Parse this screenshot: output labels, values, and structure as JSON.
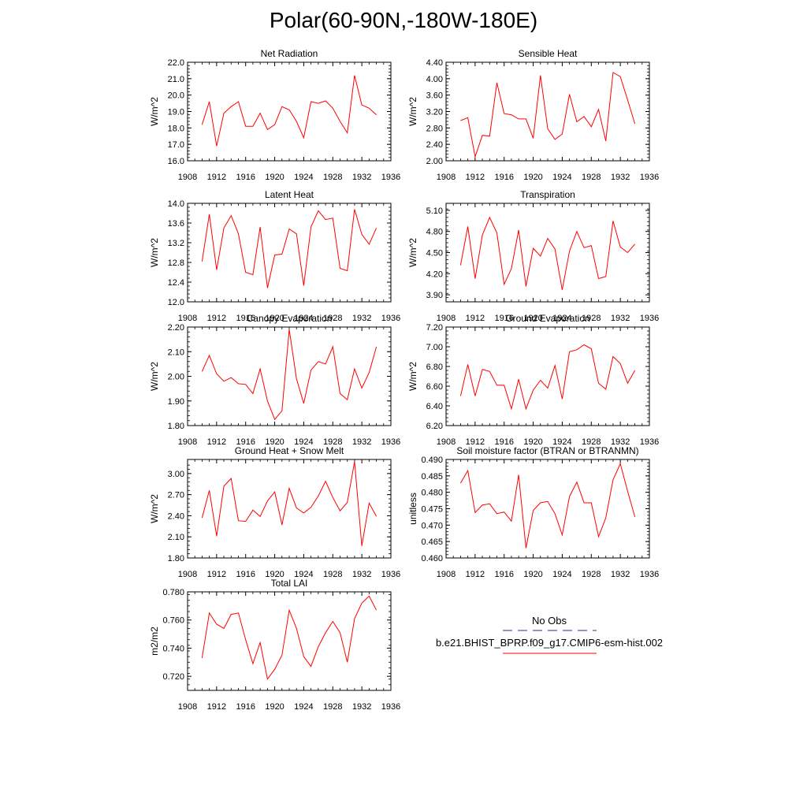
{
  "page_title": "Polar(60-90N,-180W-180E)",
  "line_color": "#ff0000",
  "legend": {
    "obs_label": "No Obs",
    "model_label": "b.e21.BHIST_BPRP.f09_g17.CMIP6-esm-hist.002",
    "obs_color": "#2b2b8c",
    "model_color": "#ff0000"
  },
  "chart_data": [
    {
      "type": "line",
      "title": "Net Radiation",
      "ylabel": "W/m^2",
      "xlim": [
        1908,
        1936
      ],
      "xticks": [
        1908,
        1912,
        1916,
        1920,
        1924,
        1928,
        1932,
        1936
      ],
      "ylim": [
        16.0,
        22.0
      ],
      "yticks": [
        "16.0",
        "17.0",
        "18.0",
        "19.0",
        "20.0",
        "21.0",
        "22.0"
      ],
      "yminor": 0.2,
      "x": [
        1910,
        1911,
        1912,
        1913,
        1914,
        1915,
        1916,
        1917,
        1918,
        1919,
        1920,
        1921,
        1922,
        1923,
        1924,
        1925,
        1926,
        1927,
        1928,
        1929,
        1930,
        1931,
        1932,
        1933,
        1934
      ],
      "series": [
        {
          "name": "b.e21.BHIST_BPRP.f09_g17.CMIP6-esm-hist.002",
          "values": [
            18.2,
            19.6,
            16.9,
            18.9,
            19.3,
            19.6,
            18.1,
            18.1,
            18.9,
            17.9,
            18.2,
            19.3,
            19.1,
            18.4,
            17.4,
            19.6,
            19.5,
            19.65,
            19.2,
            18.4,
            17.7,
            21.2,
            19.4,
            19.2,
            18.8
          ]
        }
      ]
    },
    {
      "type": "line",
      "title": "Sensible Heat",
      "ylabel": "W/m^2",
      "xlim": [
        1908,
        1936
      ],
      "xticks": [
        1908,
        1912,
        1916,
        1920,
        1924,
        1928,
        1932,
        1936
      ],
      "ylim": [
        2.0,
        4.4
      ],
      "yticks": [
        "2.00",
        "2.40",
        "2.80",
        "3.20",
        "3.60",
        "4.00",
        "4.40"
      ],
      "yminor": 0.08,
      "x": [
        1910,
        1911,
        1912,
        1913,
        1914,
        1915,
        1916,
        1917,
        1918,
        1919,
        1920,
        1921,
        1922,
        1923,
        1924,
        1925,
        1926,
        1927,
        1928,
        1929,
        1930,
        1931,
        1932,
        1933,
        1934
      ],
      "series": [
        {
          "name": "b.e21.BHIST_BPRP.f09_g17.CMIP6-esm-hist.002",
          "values": [
            2.98,
            3.05,
            2.1,
            2.62,
            2.6,
            3.9,
            3.15,
            3.12,
            3.02,
            3.02,
            2.55,
            4.08,
            2.78,
            2.52,
            2.65,
            3.62,
            2.95,
            3.08,
            2.83,
            3.25,
            2.48,
            4.15,
            4.05,
            3.48,
            2.9
          ]
        }
      ]
    },
    {
      "type": "line",
      "title": "Latent Heat",
      "ylabel": "W/m^2",
      "xlim": [
        1908,
        1936
      ],
      "xticks": [
        1908,
        1912,
        1916,
        1920,
        1924,
        1928,
        1932,
        1936
      ],
      "ylim": [
        12.0,
        14.0
      ],
      "yticks": [
        "12.0",
        "12.4",
        "12.8",
        "13.2",
        "13.6",
        "14.0"
      ],
      "yminor": 0.08,
      "x": [
        1910,
        1911,
        1912,
        1913,
        1914,
        1915,
        1916,
        1917,
        1918,
        1919,
        1920,
        1921,
        1922,
        1923,
        1924,
        1925,
        1926,
        1927,
        1928,
        1929,
        1930,
        1931,
        1932,
        1933,
        1934
      ],
      "series": [
        {
          "name": "b.e21.BHIST_BPRP.f09_g17.CMIP6-esm-hist.002",
          "values": [
            12.82,
            13.78,
            12.65,
            13.5,
            13.75,
            13.38,
            12.6,
            12.55,
            13.52,
            12.28,
            12.95,
            12.97,
            13.48,
            13.38,
            12.33,
            13.52,
            13.85,
            13.67,
            13.7,
            12.68,
            12.63,
            13.88,
            13.37,
            13.17,
            13.5
          ]
        }
      ]
    },
    {
      "type": "line",
      "title": "Transpiration",
      "ylabel": "W/m^2",
      "xlim": [
        1908,
        1936
      ],
      "xticks": [
        1908,
        1912,
        1916,
        1920,
        1924,
        1928,
        1932,
        1936
      ],
      "ylim": [
        3.8,
        5.2
      ],
      "yticks": [
        "3.90",
        "4.20",
        "4.50",
        "4.80",
        "5.10"
      ],
      "yminor": 0.06,
      "x": [
        1910,
        1911,
        1912,
        1913,
        1914,
        1915,
        1916,
        1917,
        1918,
        1919,
        1920,
        1921,
        1922,
        1923,
        1924,
        1925,
        1926,
        1927,
        1928,
        1929,
        1930,
        1931,
        1932,
        1933,
        1934
      ],
      "series": [
        {
          "name": "b.e21.BHIST_BPRP.f09_g17.CMIP6-esm-hist.002",
          "values": [
            4.32,
            4.87,
            4.13,
            4.75,
            5.0,
            4.78,
            4.05,
            4.27,
            4.82,
            4.02,
            4.56,
            4.45,
            4.7,
            4.55,
            3.97,
            4.52,
            4.8,
            4.57,
            4.6,
            4.13,
            4.16,
            4.95,
            4.58,
            4.5,
            4.62
          ]
        }
      ]
    },
    {
      "type": "line",
      "title": "Canopy Evaporation",
      "ylabel": "W/m^2",
      "xlim": [
        1908,
        1936
      ],
      "xticks": [
        1908,
        1912,
        1916,
        1920,
        1924,
        1928,
        1932,
        1936
      ],
      "ylim": [
        1.8,
        2.2
      ],
      "yticks": [
        "1.80",
        "1.90",
        "2.00",
        "2.10",
        "2.20"
      ],
      "yminor": 0.02,
      "x": [
        1910,
        1911,
        1912,
        1913,
        1914,
        1915,
        1916,
        1917,
        1918,
        1919,
        1920,
        1921,
        1922,
        1923,
        1924,
        1925,
        1926,
        1927,
        1928,
        1929,
        1930,
        1931,
        1932,
        1933,
        1934
      ],
      "series": [
        {
          "name": "b.e21.BHIST_BPRP.f09_g17.CMIP6-esm-hist.002",
          "values": [
            2.02,
            2.085,
            2.01,
            1.98,
            1.995,
            1.97,
            1.967,
            1.93,
            2.03,
            1.9,
            1.825,
            1.86,
            2.19,
            1.99,
            1.89,
            2.025,
            2.06,
            2.05,
            2.12,
            1.93,
            1.905,
            2.03,
            1.952,
            2.015,
            2.12
          ]
        }
      ]
    },
    {
      "type": "line",
      "title": "Ground Evaporation",
      "ylabel": "W/m^2",
      "xlim": [
        1908,
        1936
      ],
      "xticks": [
        1908,
        1912,
        1916,
        1920,
        1924,
        1928,
        1932,
        1936
      ],
      "ylim": [
        6.2,
        7.2
      ],
      "yticks": [
        "6.20",
        "6.40",
        "6.60",
        "6.80",
        "7.00",
        "7.20"
      ],
      "yminor": 0.04,
      "x": [
        1910,
        1911,
        1912,
        1913,
        1914,
        1915,
        1916,
        1917,
        1918,
        1919,
        1920,
        1921,
        1922,
        1923,
        1924,
        1925,
        1926,
        1927,
        1928,
        1929,
        1930,
        1931,
        1932,
        1933,
        1934
      ],
      "series": [
        {
          "name": "b.e21.BHIST_BPRP.f09_g17.CMIP6-esm-hist.002",
          "values": [
            6.5,
            6.82,
            6.5,
            6.77,
            6.75,
            6.61,
            6.61,
            6.37,
            6.67,
            6.37,
            6.56,
            6.66,
            6.58,
            6.81,
            6.47,
            6.95,
            6.97,
            7.02,
            6.98,
            6.63,
            6.57,
            6.9,
            6.83,
            6.63,
            6.76
          ]
        }
      ]
    },
    {
      "type": "line",
      "title": "Ground Heat + Snow Melt",
      "ylabel": "W/m^2",
      "xlim": [
        1908,
        1936
      ],
      "xticks": [
        1908,
        1912,
        1916,
        1920,
        1924,
        1928,
        1932,
        1936
      ],
      "ylim": [
        1.8,
        3.2
      ],
      "yticks": [
        "1.80",
        "2.10",
        "2.40",
        "2.70",
        "3.00"
      ],
      "yminor": 0.06,
      "x": [
        1910,
        1911,
        1912,
        1913,
        1914,
        1915,
        1916,
        1917,
        1918,
        1919,
        1920,
        1921,
        1922,
        1923,
        1924,
        1925,
        1926,
        1927,
        1928,
        1929,
        1930,
        1931,
        1932,
        1933,
        1934
      ],
      "series": [
        {
          "name": "b.e21.BHIST_BPRP.f09_g17.CMIP6-esm-hist.002",
          "values": [
            2.37,
            2.76,
            2.11,
            2.82,
            2.93,
            2.33,
            2.32,
            2.48,
            2.39,
            2.61,
            2.74,
            2.27,
            2.79,
            2.51,
            2.44,
            2.52,
            2.68,
            2.89,
            2.66,
            2.47,
            2.59,
            3.17,
            1.97,
            2.58,
            2.39
          ]
        }
      ]
    },
    {
      "type": "line",
      "title": "Soil moisture factor (BTRAN or BTRANMN)",
      "ylabel": "unitless",
      "xlim": [
        1908,
        1936
      ],
      "xticks": [
        1908,
        1912,
        1916,
        1920,
        1924,
        1928,
        1932,
        1936
      ],
      "ylim": [
        0.46,
        0.49
      ],
      "yticks": [
        "0.460",
        "0.465",
        "0.470",
        "0.475",
        "0.480",
        "0.485",
        "0.490"
      ],
      "yminor": 0.001,
      "x": [
        1910,
        1911,
        1912,
        1913,
        1914,
        1915,
        1916,
        1917,
        1918,
        1919,
        1920,
        1921,
        1922,
        1923,
        1924,
        1925,
        1926,
        1927,
        1928,
        1929,
        1930,
        1931,
        1932,
        1933,
        1934
      ],
      "series": [
        {
          "name": "b.e21.BHIST_BPRP.f09_g17.CMIP6-esm-hist.002",
          "values": [
            0.4828,
            0.4866,
            0.4738,
            0.4761,
            0.4765,
            0.4735,
            0.474,
            0.4712,
            0.4853,
            0.463,
            0.4745,
            0.4768,
            0.4772,
            0.4735,
            0.467,
            0.4787,
            0.4831,
            0.4768,
            0.4768,
            0.4665,
            0.4722,
            0.4838,
            0.4887,
            0.4803,
            0.4725
          ]
        }
      ]
    },
    {
      "type": "line",
      "title": "Total LAI",
      "ylabel": "m2/m2",
      "xlim": [
        1908,
        1936
      ],
      "xticks": [
        1908,
        1912,
        1916,
        1920,
        1924,
        1928,
        1932,
        1936
      ],
      "ylim": [
        0.71,
        0.78
      ],
      "yticks": [
        "0.720",
        "0.740",
        "0.760",
        "0.780"
      ],
      "yminor": 0.004,
      "x": [
        1910,
        1911,
        1912,
        1913,
        1914,
        1915,
        1916,
        1917,
        1918,
        1919,
        1920,
        1921,
        1922,
        1923,
        1924,
        1925,
        1926,
        1927,
        1928,
        1929,
        1930,
        1931,
        1932,
        1933,
        1934
      ],
      "series": [
        {
          "name": "b.e21.BHIST_BPRP.f09_g17.CMIP6-esm-hist.002",
          "values": [
            0.733,
            0.765,
            0.757,
            0.754,
            0.764,
            0.765,
            0.746,
            0.729,
            0.744,
            0.718,
            0.725,
            0.735,
            0.767,
            0.754,
            0.734,
            0.727,
            0.741,
            0.751,
            0.759,
            0.751,
            0.73,
            0.761,
            0.772,
            0.777,
            0.767
          ]
        }
      ]
    }
  ]
}
